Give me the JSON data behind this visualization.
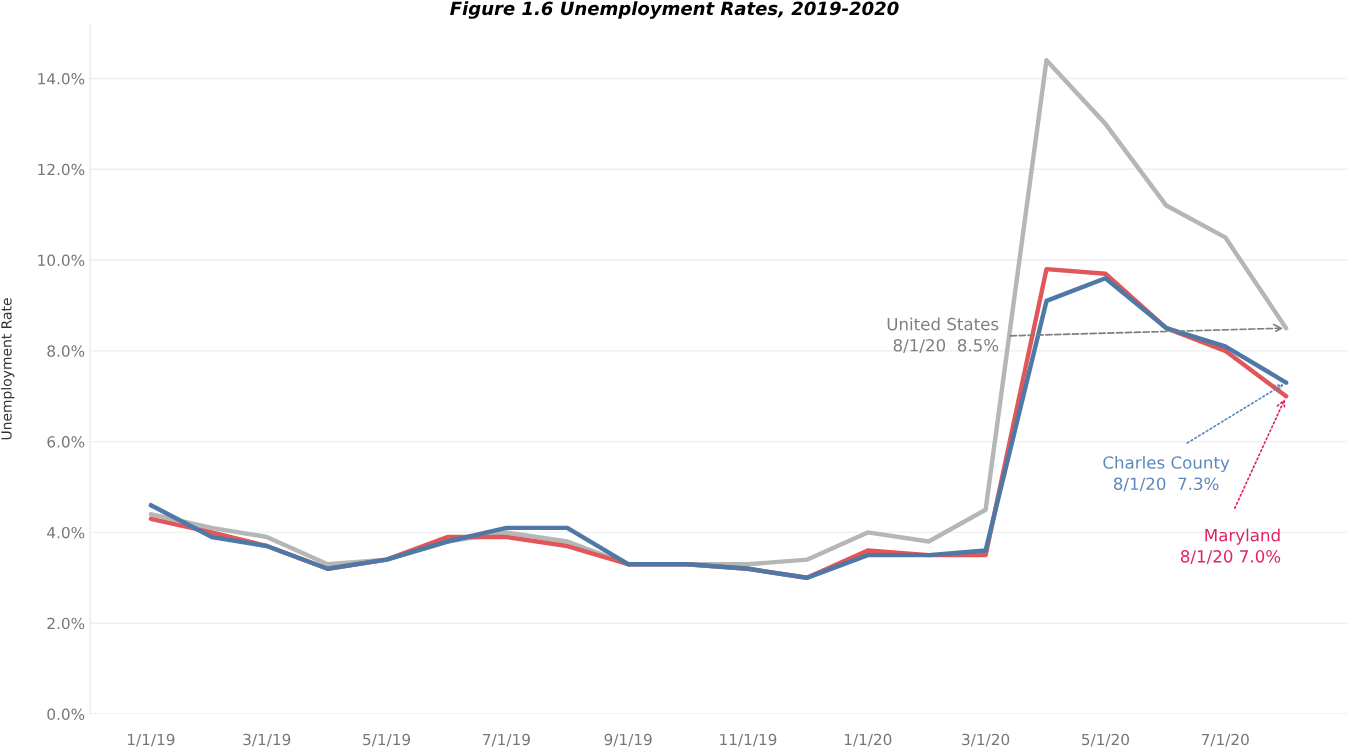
{
  "chart_data": {
    "type": "line",
    "title": "Figure 1.6 Unemployment Rates, 2019-2020",
    "ylabel": "Unemployment Rate",
    "x": [
      "2019-01",
      "2019-02",
      "2019-03",
      "2019-04",
      "2019-05",
      "2019-06",
      "2019-07",
      "2019-08",
      "2019-09",
      "2019-10",
      "2019-11",
      "2019-12",
      "2020-01",
      "2020-02",
      "2020-03",
      "2020-04",
      "2020-05",
      "2020-06",
      "2020-07",
      "2020-08"
    ],
    "series": [
      {
        "color": "#b5b7b7",
        "values": [
          4.4,
          4.1,
          3.9,
          3.3,
          3.4,
          3.8,
          4.0,
          3.8,
          3.3,
          3.3,
          3.3,
          3.4,
          4.0,
          3.8,
          4.5,
          14.4,
          13.0,
          11.2,
          10.5,
          8.5
        ]
      },
      {
        "color": "#e15759",
        "values": [
          4.3,
          4.0,
          3.7,
          3.2,
          3.4,
          3.9,
          3.9,
          3.7,
          3.3,
          3.3,
          3.2,
          3.0,
          3.6,
          3.5,
          3.5,
          9.8,
          9.7,
          8.5,
          8.0,
          7.0
        ]
      },
      {
        "color": "#4e79a7",
        "values": [
          4.6,
          3.9,
          3.7,
          3.2,
          3.4,
          3.8,
          4.1,
          4.1,
          3.3,
          3.3,
          3.2,
          3.0,
          3.5,
          3.5,
          3.6,
          9.1,
          9.6,
          8.5,
          8.1,
          7.3
        ]
      }
    ],
    "annotations": [
      {
        "text": "United States\n8/1/20  8.5%",
        "x": "2020-08",
        "y": 8.5
      },
      {
        "text": "Maryland\n8/1/20 7.0%",
        "x": "2020-08",
        "y": 7.0
      },
      {
        "text": "Charles County\n8/1/20  7.3%",
        "x": "2020-08",
        "y": 7.3
      }
    ],
    "xlim": [
      "2018-12",
      "2020-09"
    ],
    "xticks": [
      {
        "value": "2019-01",
        "label": "1/1/19"
      },
      {
        "value": "2019-03",
        "label": "3/1/19"
      },
      {
        "value": "2019-05",
        "label": "5/1/19"
      },
      {
        "value": "2019-07",
        "label": "7/1/19"
      },
      {
        "value": "2019-09",
        "label": "9/1/19"
      },
      {
        "value": "2019-11",
        "label": "11/1/19"
      },
      {
        "value": "2020-01",
        "label": "1/1/20"
      },
      {
        "value": "2020-03",
        "label": "3/1/20"
      },
      {
        "value": "2020-05",
        "label": "5/1/20"
      },
      {
        "value": "2020-07",
        "label": "7/1/20"
      }
    ],
    "ylim": [
      0,
      15.2
    ],
    "yticks": [
      {
        "value": 0,
        "label": "0.0%"
      },
      {
        "value": 2,
        "label": "2.0%"
      },
      {
        "value": 4,
        "label": "4.0%"
      },
      {
        "value": 6,
        "label": "6.0%"
      },
      {
        "value": 8,
        "label": "8.0%"
      },
      {
        "value": 10,
        "label": "10.0%"
      },
      {
        "value": 12,
        "label": "12.0%"
      },
      {
        "value": 14,
        "label": "14.0%"
      }
    ],
    "grid": "y",
    "legend": false,
    "marker": "none",
    "line_style": "solid"
  }
}
